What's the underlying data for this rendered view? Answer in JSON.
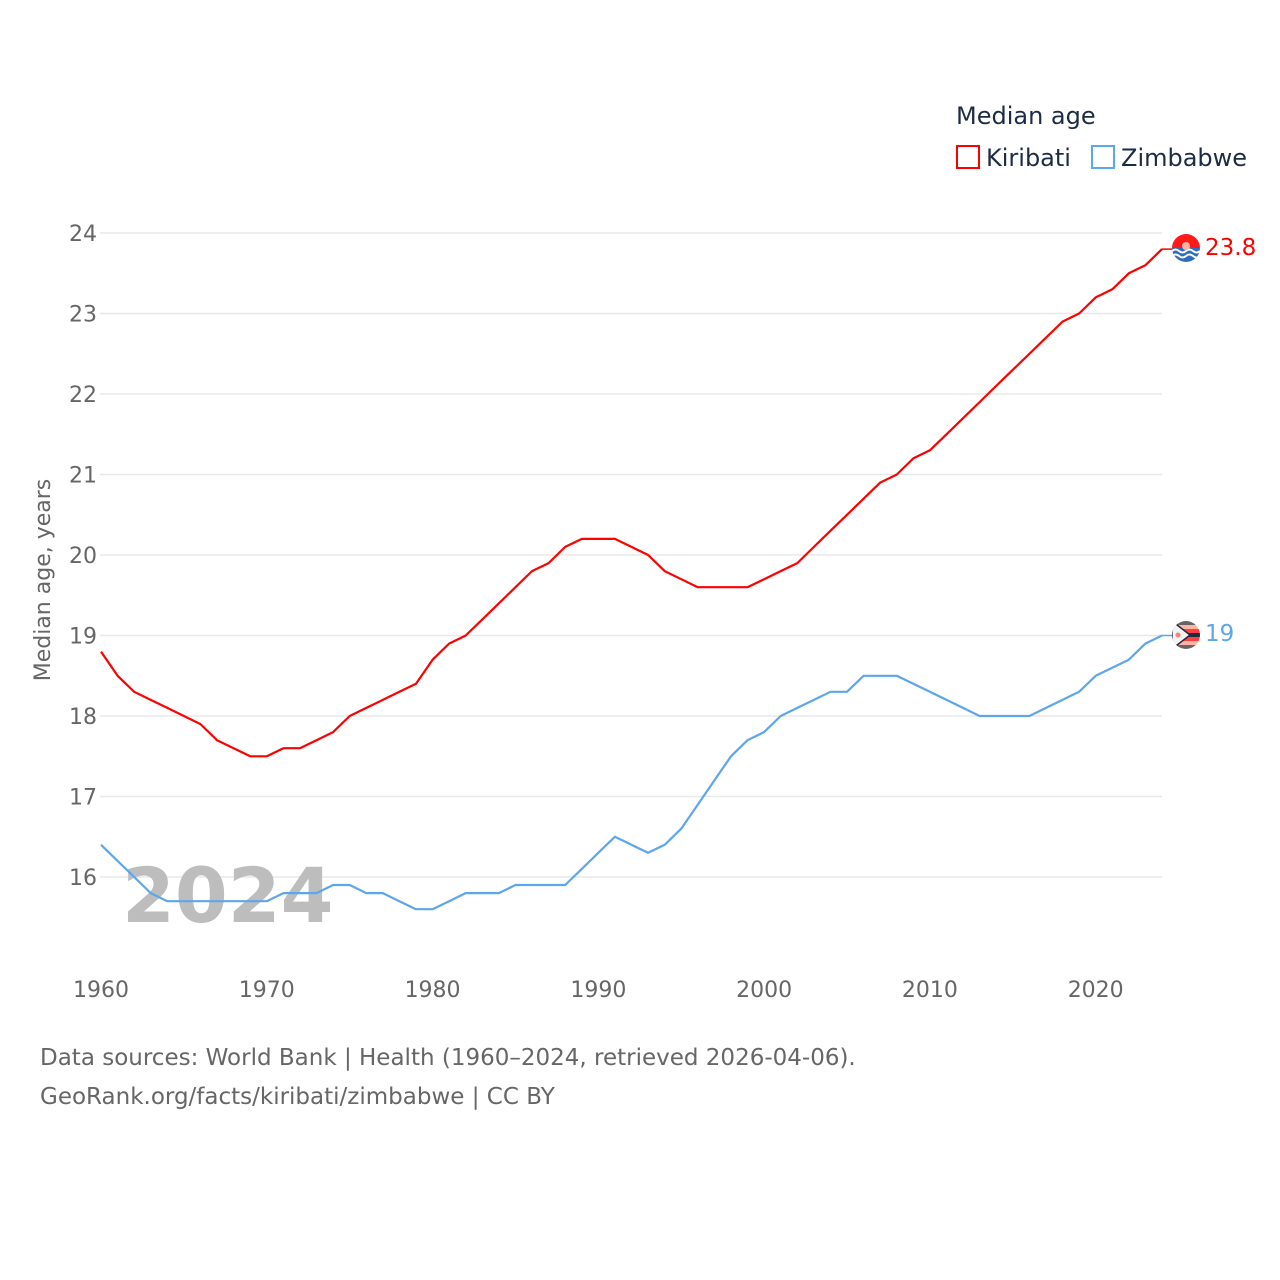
{
  "chart_data": {
    "type": "line",
    "title": "",
    "xlabel": "",
    "ylabel": "Median age, years",
    "xlim": [
      1960,
      2024
    ],
    "ylim": [
      15.2,
      24.3
    ],
    "grid": true,
    "legend": {
      "title": "Median age",
      "placement": "top-right"
    },
    "x_ticks": [
      "1960",
      "1970",
      "1980",
      "1990",
      "2000",
      "2010",
      "2020"
    ],
    "y_ticks": [
      "16",
      "17",
      "18",
      "19",
      "20",
      "21",
      "22",
      "23",
      "24"
    ],
    "watermark_year": "2024",
    "x": [
      1960,
      1961,
      1962,
      1963,
      1964,
      1965,
      1966,
      1967,
      1968,
      1969,
      1970,
      1971,
      1972,
      1973,
      1974,
      1975,
      1976,
      1977,
      1978,
      1979,
      1980,
      1981,
      1982,
      1983,
      1984,
      1985,
      1986,
      1987,
      1988,
      1989,
      1990,
      1991,
      1992,
      1993,
      1994,
      1995,
      1996,
      1997,
      1998,
      1999,
      2000,
      2001,
      2002,
      2003,
      2004,
      2005,
      2006,
      2007,
      2008,
      2009,
      2010,
      2011,
      2012,
      2013,
      2014,
      2015,
      2016,
      2017,
      2018,
      2019,
      2020,
      2021,
      2022,
      2023,
      2024
    ],
    "series": [
      {
        "name": "Kiribati",
        "color": "#ff0000",
        "end_label": "23.8",
        "values": [
          18.8,
          18.5,
          18.3,
          18.2,
          18.1,
          18.0,
          17.9,
          17.7,
          17.6,
          17.5,
          17.5,
          17.6,
          17.6,
          17.7,
          17.8,
          18.0,
          18.1,
          18.2,
          18.3,
          18.4,
          18.7,
          18.9,
          19.0,
          19.2,
          19.4,
          19.6,
          19.8,
          19.9,
          20.1,
          20.2,
          20.2,
          20.2,
          20.1,
          20.0,
          19.8,
          19.7,
          19.6,
          19.6,
          19.6,
          19.6,
          19.7,
          19.8,
          19.9,
          20.1,
          20.3,
          20.5,
          20.7,
          20.9,
          21.0,
          21.2,
          21.3,
          21.5,
          21.7,
          21.9,
          22.1,
          22.3,
          22.5,
          22.7,
          22.9,
          23.0,
          23.2,
          23.3,
          23.5,
          23.6,
          23.8
        ]
      },
      {
        "name": "Zimbabwe",
        "color": "#5ea6ea",
        "end_label": "19",
        "values": [
          16.4,
          16.2,
          16.0,
          15.8,
          15.7,
          15.7,
          15.7,
          15.7,
          15.7,
          15.7,
          15.7,
          15.8,
          15.8,
          15.8,
          15.9,
          15.9,
          15.8,
          15.8,
          15.7,
          15.6,
          15.6,
          15.7,
          15.8,
          15.8,
          15.8,
          15.9,
          15.9,
          15.9,
          15.9,
          16.1,
          16.3,
          16.5,
          16.4,
          16.3,
          16.4,
          16.6,
          16.9,
          17.2,
          17.5,
          17.7,
          17.8,
          18.0,
          18.1,
          18.2,
          18.3,
          18.3,
          18.5,
          18.5,
          18.5,
          18.4,
          18.3,
          18.2,
          18.1,
          18.0,
          18.0,
          18.0,
          18.0,
          18.1,
          18.2,
          18.3,
          18.5,
          18.6,
          18.7,
          18.9,
          19.0
        ]
      }
    ]
  },
  "footer": {
    "line1": "Data sources: World Bank | Health (1960–2024, retrieved 2026-04-06).",
    "line2": "GeoRank.org/facts/kiribati/zimbabwe | CC BY"
  }
}
